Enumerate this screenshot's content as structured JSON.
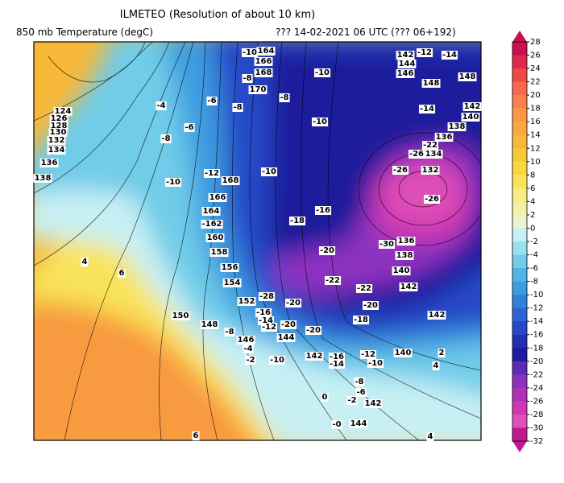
{
  "header": {
    "title": "ILMETEO (Resolution of about 10 km)",
    "subtitle": "850 mb Temperature (degC)",
    "run": "??? 14-02-2021 06 UTC (??? 06+192)"
  },
  "legend": {
    "ticks": [
      28,
      26,
      24,
      22,
      20,
      18,
      16,
      14,
      12,
      10,
      8,
      6,
      4,
      2,
      0,
      -2,
      -4,
      -6,
      -8,
      -10,
      -12,
      -14,
      -16,
      -18,
      -20,
      -22,
      -24,
      -26,
      -28,
      -30,
      -32
    ],
    "colors": [
      "#c8104c",
      "#e0284c",
      "#f04848",
      "#f86850",
      "#fb8050",
      "#fb9848",
      "#f9a840",
      "#f8b838",
      "#f8c838",
      "#f8d840",
      "#f8e45c",
      "#f8ec80",
      "#f4f0a4",
      "#e8f4d0",
      "#c8f0f4",
      "#98e0f0",
      "#70cce8",
      "#50b4e4",
      "#3c9ce0",
      "#3080dc",
      "#2c64d4",
      "#2848c8",
      "#2430b4",
      "#1c1c9c",
      "#5c2cb4",
      "#8c30c0",
      "#b030b8",
      "#d038b0",
      "#e050b8",
      "#c01890"
    ]
  },
  "map": {
    "labels": [
      "164",
      "166",
      "168",
      "170",
      "-10",
      "-8",
      "-8",
      "-6",
      "-8",
      "-10",
      "-10",
      "142",
      "144",
      "146",
      "-12",
      "-14",
      "148",
      "148",
      "-14",
      "142",
      "140",
      "138",
      "136",
      "-22",
      "-26",
      "134",
      "-26",
      "132",
      "-26",
      "-16",
      "-18",
      "136",
      "-30",
      "138",
      "-20",
      "140",
      "142",
      "-22",
      "-22",
      "-20",
      "-18",
      "142",
      "140",
      "-12",
      "-10",
      "124",
      "126",
      "128",
      "130",
      "132",
      "134",
      "136",
      "138",
      "-12",
      "168",
      "-10",
      "166",
      "164",
      "-162",
      "160",
      "158",
      "156",
      "154",
      "152",
      "-28",
      "-20",
      "-16",
      "-14",
      "-12",
      "-20",
      "-20",
      "150",
      "148",
      "-8",
      "146",
      "144",
      "-4",
      "-2",
      "-10",
      "142",
      "-16",
      "-14",
      "-8",
      "-6",
      "-2",
      "142",
      "144",
      "-0",
      "0",
      "6",
      "4",
      "2",
      "4",
      "6",
      "4",
      "-10",
      "-8",
      "-6",
      "-4"
    ]
  }
}
